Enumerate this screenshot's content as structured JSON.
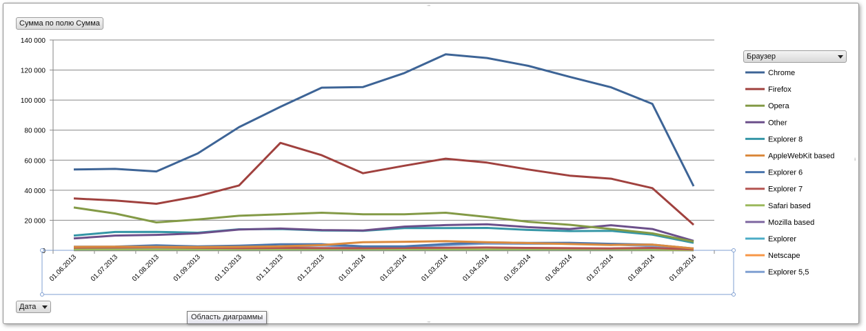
{
  "pivot": {
    "value_field_button": "Сумма по полю Сумма",
    "legend_field_button": "Браузер",
    "axis_field_button": "Дата"
  },
  "tooltip": "Область диаграммы",
  "chart_data": {
    "type": "line",
    "title": "",
    "xlabel": "",
    "ylabel": "",
    "ylim": [
      0,
      140000
    ],
    "yticks": [
      0,
      20000,
      40000,
      60000,
      80000,
      100000,
      120000,
      140000
    ],
    "ytick_labels": [
      "0",
      "20 000",
      "40 000",
      "60 000",
      "80 000",
      "100 000",
      "120 000",
      "140 000"
    ],
    "grid": true,
    "legend_position": "right",
    "categories": [
      "01.06.2013",
      "01.07.2013",
      "01.08.2013",
      "01.09.2013",
      "01.10.2013",
      "01.11.2013",
      "01.12.2013",
      "01.01.2014",
      "01.02.2014",
      "01.03.2014",
      "01.04.2014",
      "01.05.2014",
      "01.06.2014",
      "01.07.2014",
      "01.08.2014",
      "01.09.2014"
    ],
    "series": [
      {
        "name": "Chrome",
        "color": "#3d6496",
        "values": [
          53800,
          54200,
          52500,
          64500,
          82000,
          95500,
          108300,
          108700,
          118000,
          130500,
          128000,
          122800,
          115500,
          108500,
          97500,
          42700
        ]
      },
      {
        "name": "Firefox",
        "color": "#a0413e",
        "values": [
          34500,
          33200,
          31000,
          36000,
          43200,
          71500,
          63300,
          51300,
          56300,
          61000,
          58400,
          53800,
          49700,
          47700,
          41400,
          17000
        ]
      },
      {
        "name": "Opera",
        "color": "#839a46",
        "values": [
          28500,
          24500,
          18600,
          20500,
          23000,
          24000,
          25000,
          24000,
          24000,
          25000,
          22200,
          19000,
          17000,
          14200,
          11300,
          5800
        ]
      },
      {
        "name": "Other",
        "color": "#6b4f8a",
        "values": [
          7900,
          9800,
          10300,
          11300,
          13800,
          14500,
          13500,
          13200,
          15800,
          16800,
          17300,
          15400,
          14200,
          16700,
          14200,
          6300
        ]
      },
      {
        "name": "Explorer 8",
        "color": "#3596a6",
        "values": [
          9800,
          12200,
          12300,
          11700,
          14000,
          14200,
          13200,
          13000,
          14800,
          14800,
          14900,
          13600,
          12800,
          13000,
          10400,
          5000
        ]
      },
      {
        "name": "AppleWebKit based",
        "color": "#db8a3e",
        "values": [
          2300,
          2400,
          2300,
          2200,
          2300,
          2600,
          3500,
          5400,
          5700,
          6100,
          5400,
          4800,
          4200,
          3600,
          3800,
          1200
        ]
      },
      {
        "name": "Explorer 6",
        "color": "#4a75ad",
        "values": [
          2400,
          2500,
          3300,
          2600,
          3100,
          4000,
          4100,
          2600,
          2600,
          4200,
          5300,
          4900,
          5000,
          4300,
          3800,
          1200
        ]
      },
      {
        "name": "Explorer 7",
        "color": "#b45350",
        "values": [
          1800,
          1900,
          2000,
          1700,
          1500,
          1600,
          1500,
          1400,
          1600,
          1700,
          1900,
          1600,
          1400,
          1300,
          1600,
          600
        ]
      },
      {
        "name": "Safari based",
        "color": "#9bb85c",
        "values": [
          500,
          500,
          500,
          500,
          500,
          500,
          500,
          500,
          500,
          500,
          500,
          500,
          500,
          500,
          400,
          200
        ]
      },
      {
        "name": "Mozilla based",
        "color": "#7e66a0",
        "values": [
          300,
          300,
          300,
          300,
          300,
          300,
          300,
          300,
          300,
          300,
          300,
          300,
          300,
          300,
          300,
          100
        ]
      },
      {
        "name": "Explorer",
        "color": "#4bacc6",
        "values": [
          200,
          200,
          200,
          200,
          200,
          200,
          200,
          200,
          200,
          200,
          200,
          200,
          200,
          200,
          200,
          100
        ]
      },
      {
        "name": "Netscape",
        "color": "#f79646",
        "values": [
          100,
          100,
          100,
          100,
          100,
          100,
          100,
          100,
          100,
          100,
          100,
          100,
          100,
          100,
          100,
          50
        ]
      },
      {
        "name": "Explorer 5,5",
        "color": "#7f9fd1",
        "values": [
          1500,
          1600,
          1700,
          1700,
          1800,
          2500,
          3200,
          2300,
          2200,
          3400,
          4500,
          4300,
          4500,
          3900,
          2800,
          900
        ]
      }
    ]
  }
}
